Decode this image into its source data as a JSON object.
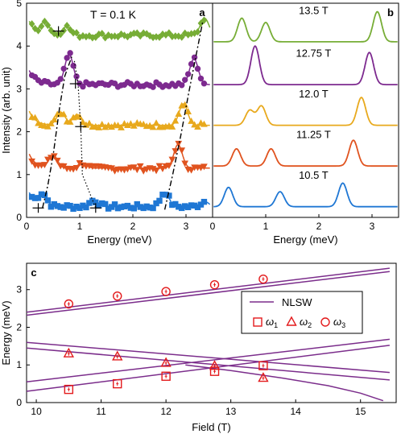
{
  "colors": {
    "B": "#1f77d4",
    "C": "#e0531f",
    "D": "#e8a91d",
    "E": "#7d2a8f",
    "F": "#77ad36",
    "red": "#e31a1c",
    "purple": "#7b2d8b"
  },
  "chart_data": [
    {
      "panel": "a",
      "type": "scatter",
      "annotation": "T = 0.1 K",
      "xlabel": "Energy (meV)",
      "ylabel": "Intensity (arb. unit)",
      "xlim": [
        0,
        3.5
      ],
      "ylim": [
        0,
        5
      ],
      "xticks": [
        "0",
        "1",
        "2",
        "3"
      ],
      "yticks": [
        "0",
        "1",
        "2",
        "3",
        "4",
        "5"
      ],
      "curve_shape": "intensity decreasing from ~0.45 at 0.05 meV; peaks at the listed energies sit on a flat background",
      "series": [
        {
          "offset": 0.25,
          "color_key": "B",
          "marker": "square",
          "peaks": [
            0.3,
            1.27,
            2.6,
            3.35
          ],
          "peak_heights": [
            0.28,
            0.15,
            0.34,
            0.12
          ]
        },
        {
          "offset": 1.15,
          "color_key": "C",
          "marker": "triangle-down",
          "peaks": [
            0.5,
            1.05,
            2.85
          ],
          "peak_heights": [
            0.3,
            0.12,
            0.55
          ]
        },
        {
          "offset": 2.15,
          "color_key": "D",
          "marker": "triangle-up",
          "peaks": [
            0.65,
            0.95,
            2.95
          ],
          "peak_heights": [
            0.3,
            0.25,
            0.5
          ]
        },
        {
          "offset": 3.1,
          "color_key": "E",
          "marker": "circle",
          "peaks": [
            0.8,
            3.15
          ],
          "peak_heights": [
            0.7,
            0.6
          ]
        },
        {
          "offset": 4.25,
          "color_key": "F",
          "marker": "diamond",
          "peaks": [
            0.35,
            0.75,
            3.35
          ],
          "peak_heights": [
            0.3,
            0.2,
            0.4
          ]
        }
      ],
      "dotted_guide": [
        [
          0.9,
          3.65
        ],
        [
          0.97,
          3.1
        ],
        [
          1.02,
          2.1
        ],
        [
          1.05,
          1.0
        ],
        [
          1.3,
          0.22
        ]
      ],
      "dashed_guide_low": [
        [
          0.3,
          0.22
        ],
        [
          0.4,
          0.75
        ],
        [
          0.5,
          1.45
        ],
        [
          0.62,
          2.55
        ],
        [
          0.72,
          3.3
        ],
        [
          0.85,
          3.75
        ]
      ],
      "dashed_guide_high": [
        [
          2.6,
          0.18
        ],
        [
          2.75,
          1.0
        ],
        [
          2.9,
          1.9
        ],
        [
          3.05,
          2.9
        ],
        [
          3.2,
          3.85
        ],
        [
          3.32,
          4.6
        ]
      ],
      "error_points": [
        [
          0.92,
          3.12
        ],
        [
          1.02,
          2.12
        ],
        [
          0.6,
          4.35
        ],
        [
          0.22,
          0.22
        ],
        [
          1.3,
          0.22
        ]
      ]
    },
    {
      "panel": "b",
      "type": "line",
      "xlabel": "Energy (meV)",
      "xlim": [
        0,
        3.5
      ],
      "xticks": [
        "0",
        "1",
        "2",
        "3"
      ],
      "series": [
        {
          "name": "10.5 T",
          "color_key": "B",
          "offset": 0.25,
          "peaks": [
            0.3,
            1.27,
            2.45
          ],
          "peak_heights": [
            0.45,
            0.35,
            0.55
          ]
        },
        {
          "name": "11.25 T",
          "color_key": "C",
          "offset": 1.2,
          "peaks": [
            0.45,
            1.1,
            2.65
          ],
          "peak_heights": [
            0.4,
            0.4,
            0.6
          ]
        },
        {
          "name": "12.0 T",
          "color_key": "D",
          "offset": 2.15,
          "peaks": [
            0.7,
            0.92,
            2.8
          ],
          "peak_heights": [
            0.35,
            0.45,
            0.65
          ]
        },
        {
          "name": "12.75 T",
          "color_key": "E",
          "offset": 3.1,
          "peaks": [
            0.8,
            2.95
          ],
          "peak_heights": [
            0.9,
            0.75
          ]
        },
        {
          "name": "13.5 T",
          "color_key": "F",
          "offset": 4.1,
          "peaks": [
            0.55,
            1.0,
            3.1
          ],
          "peak_heights": [
            0.55,
            0.45,
            0.7
          ]
        }
      ]
    },
    {
      "panel": "c",
      "type": "scatter",
      "xlabel": "Field (T)",
      "ylabel": "Energy (meV)",
      "xlim": [
        9.85,
        15.55
      ],
      "ylim": [
        0,
        3.7
      ],
      "xticks": [
        "10",
        "11",
        "12",
        "13",
        "14",
        "15"
      ],
      "yticks": [
        "0",
        "1",
        "2",
        "3"
      ],
      "legend_title": "NLSW",
      "legend_labels": [
        "ω1",
        "ω2",
        "ω3"
      ],
      "series": [
        {
          "name": "ω1",
          "marker": "square",
          "x": [
            10.5,
            11.25,
            12.0,
            12.75,
            13.5
          ],
          "y": [
            0.35,
            0.5,
            0.7,
            0.83,
            0.98
          ]
        },
        {
          "name": "ω2",
          "marker": "triangle",
          "x": [
            10.5,
            11.25,
            12.0,
            12.75,
            13.5
          ],
          "y": [
            1.3,
            1.22,
            1.05,
            0.97,
            0.65
          ]
        },
        {
          "name": "ω3",
          "marker": "circle",
          "x": [
            10.5,
            11.25,
            12.0,
            12.75,
            13.5
          ],
          "y": [
            2.62,
            2.83,
            2.95,
            3.13,
            3.28
          ]
        }
      ],
      "nlsw_lines": [
        [
          [
            9.85,
            2.4
          ],
          [
            15.45,
            3.57
          ]
        ],
        [
          [
            9.85,
            2.32
          ],
          [
            15.45,
            3.48
          ]
        ],
        [
          [
            9.85,
            1.6
          ],
          [
            15.45,
            0.8
          ]
        ],
        [
          [
            9.85,
            1.45
          ],
          [
            15.45,
            0.6
          ]
        ],
        [
          [
            9.85,
            0.55
          ],
          [
            15.45,
            1.68
          ]
        ],
        [
          [
            9.85,
            0.3
          ],
          [
            15.45,
            1.52
          ]
        ]
      ],
      "nlsw_soft_mode": [
        [
          12.3,
          1.0
        ],
        [
          13.0,
          0.85
        ],
        [
          13.8,
          0.65
        ],
        [
          14.5,
          0.45
        ],
        [
          15.0,
          0.25
        ],
        [
          15.35,
          0.05
        ]
      ]
    }
  ]
}
